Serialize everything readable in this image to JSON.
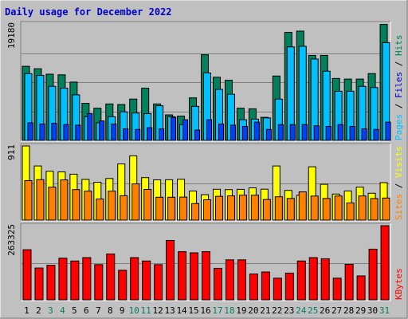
{
  "chart_data": {
    "type": "bar",
    "title": "Daily usage for December 2022",
    "colors": {
      "background": "#c0c0c0",
      "plot_background": "#c0c0c0",
      "title": "#0000cc",
      "hits": "#00805c",
      "files": "#00c0ff",
      "pages": "#0040ff",
      "visits": "#ff8000",
      "sites": "#ffff00",
      "kbytes": "#ff0000",
      "weekend_label": "#00805c",
      "weekday_label": "#000000",
      "gridline": "#808080"
    },
    "categories": [
      "1",
      "2",
      "3",
      "4",
      "5",
      "6",
      "7",
      "8",
      "9",
      "10",
      "11",
      "12",
      "13",
      "14",
      "15",
      "16",
      "17",
      "18",
      "19",
      "20",
      "21",
      "22",
      "23",
      "24",
      "25",
      "26",
      "27",
      "28",
      "29",
      "30",
      "31"
    ],
    "weekend_days": [
      3,
      4,
      10,
      11,
      17,
      18,
      24,
      25,
      31
    ],
    "panels": [
      {
        "name": "hits-files-pages",
        "ymax_label": "19180",
        "ymax": 19180,
        "labels": [
          {
            "text": "Pages",
            "color": "#00c0ff"
          },
          {
            "text": " / ",
            "color": "#000000"
          },
          {
            "text": "Files",
            "color": "#0000cc"
          },
          {
            "text": " / ",
            "color": "#000000"
          },
          {
            "text": "Hits",
            "color": "#00805c"
          }
        ],
        "series": [
          {
            "name": "Hits",
            "color": "#00805c",
            "values": [
              12200,
              11800,
              10900,
              10800,
              9600,
              6100,
              5300,
              6000,
              5900,
              6800,
              8600,
              6000,
              4200,
              4000,
              7000,
              14100,
              10400,
              9900,
              5300,
              5200,
              3800,
              10600,
              17800,
              18000,
              14000,
              14000,
              10200,
              10100,
              10100,
              11000,
              19100
            ]
          },
          {
            "name": "Files",
            "color": "#00c0ff",
            "values": [
              11000,
              10700,
              8900,
              8600,
              7500,
              3900,
              2900,
              3900,
              4700,
              4500,
              4400,
              5700,
              3900,
              2600,
              5600,
              11100,
              8400,
              7600,
              3400,
              3500,
              3700,
              6800,
              15400,
              15500,
              13400,
              11400,
              8100,
              8100,
              8900,
              8700,
              16100
            ]
          },
          {
            "name": "Pages",
            "color": "#0040ff",
            "values": [
              2900,
              2700,
              2800,
              2600,
              2500,
              4400,
              3200,
              2700,
              1900,
              1800,
              2100,
              1900,
              3800,
              3400,
              1700,
              3400,
              2700,
              2500,
              2300,
              3000,
              1800,
              2600,
              2600,
              2600,
              2400,
              2300,
              2600,
              2300,
              1900,
              1800,
              3000
            ]
          }
        ]
      },
      {
        "name": "sites-visits",
        "ymax_label": "911",
        "ymax": 911,
        "labels": [
          {
            "text": "Sites",
            "color": "#ff8000"
          },
          {
            "text": " / ",
            "color": "#000000"
          },
          {
            "text": "Visits",
            "color": "#ffff00"
          }
        ],
        "series": [
          {
            "name": "Visits",
            "color": "#ffff00",
            "values": [
              911,
              665,
              600,
              592,
              564,
              500,
              465,
              511,
              690,
              790,
              522,
              495,
              496,
              502,
              357,
              312,
              379,
              375,
              378,
              396,
              380,
              665,
              365,
              305,
              655,
              440,
              320,
              358,
              405,
              330,
              460
            ]
          },
          {
            "name": "Sites",
            "color": "#ff8000",
            "values": [
              485,
              497,
              405,
              494,
              375,
              356,
              260,
              356,
              300,
              445,
              377,
              281,
              281,
              283,
              203,
              250,
              292,
              298,
              306,
              306,
              253,
              287,
              266,
              347,
              296,
              266,
              296,
              211,
              297,
              265,
              271
            ]
          }
        ]
      },
      {
        "name": "kbytes",
        "ymax_label": "263325",
        "ymax": 263325,
        "labels": [
          {
            "text": "KBytes",
            "color": "#ff0000"
          }
        ],
        "series": [
          {
            "name": "KBytes",
            "color": "#ff0000",
            "values": [
              178000,
              113000,
              123000,
              148000,
              138000,
              150000,
              125000,
              163000,
              105000,
              150000,
              138000,
              125000,
              211000,
              171000,
              167000,
              171000,
              112000,
              142000,
              142000,
              92000,
              99000,
              77000,
              95000,
              138000,
              150000,
              146000,
              77000,
              126000,
              85000,
              180000,
              263325
            ]
          }
        ]
      }
    ]
  }
}
